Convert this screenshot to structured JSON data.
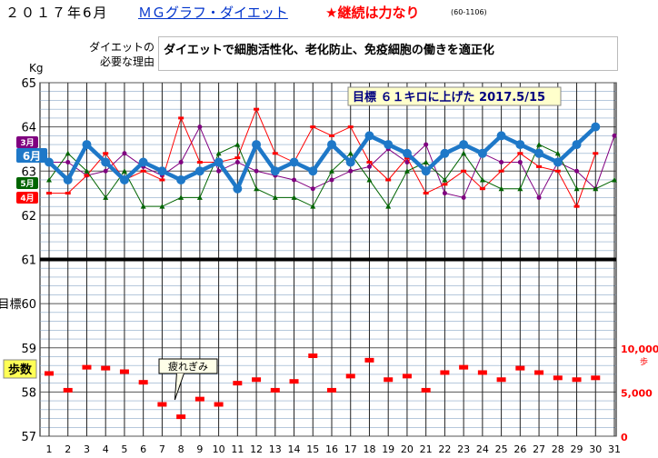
{
  "header": {
    "date": "２０１７年6月",
    "title": "ＭＧグラフ・ダイエット",
    "motto": "★継続は力なり",
    "code": "(60-1106)"
  },
  "reason": {
    "label_line1": "ダイエットの",
    "label_line2": "必要な理由",
    "text": "ダイエットで細胞活性化、老化防止、免疫細胞の働きを適正化"
  },
  "colors": {
    "june": "#1e78c8",
    "march": "#800080",
    "may": "#006400",
    "april": "#ff0000",
    "steps": "#ff0000",
    "goal_line": "#000000"
  },
  "chart_data": {
    "type": "line",
    "title": "",
    "xlabel": "",
    "ylabel": "Kg",
    "x": [
      1,
      2,
      3,
      4,
      5,
      6,
      7,
      8,
      9,
      10,
      11,
      12,
      13,
      14,
      15,
      16,
      17,
      18,
      19,
      20,
      21,
      22,
      23,
      24,
      25,
      26,
      27,
      28,
      29,
      30,
      31
    ],
    "ylim": [
      57,
      65
    ],
    "y_ticks": [
      "57",
      "58",
      "59",
      "目標60",
      "61",
      "62",
      "63",
      "64",
      "65"
    ],
    "goal_value": 61,
    "goal_label": "目標",
    "goal_box": "目標 ６１キロに上げた 2017.5/15",
    "series": [
      {
        "name": "3月",
        "values": [
          63.2,
          63.2,
          62.9,
          63.0,
          63.4,
          63.1,
          62.9,
          63.2,
          64.0,
          63.0,
          63.2,
          63.0,
          62.9,
          62.8,
          62.6,
          62.8,
          63.0,
          63.1,
          63.5,
          63.2,
          63.6,
          62.5,
          62.4,
          63.4,
          63.2,
          63.2,
          62.4,
          63.2,
          63.0,
          62.6,
          63.8
        ]
      },
      {
        "name": "4月",
        "values": [
          62.5,
          62.5,
          62.9,
          63.4,
          62.8,
          63.0,
          62.8,
          64.2,
          63.2,
          63.2,
          63.3,
          64.4,
          63.4,
          63.2,
          64.0,
          63.8,
          64.0,
          63.2,
          62.8,
          63.3,
          62.5,
          62.7,
          63.0,
          62.6,
          63.0,
          63.4,
          63.1,
          63.0,
          62.2,
          63.4,
          null
        ]
      },
      {
        "name": "5月",
        "values": [
          62.8,
          63.4,
          63.0,
          62.4,
          63.0,
          62.2,
          62.2,
          62.4,
          62.4,
          63.4,
          63.6,
          62.6,
          62.4,
          62.4,
          62.2,
          63.0,
          63.4,
          62.8,
          62.2,
          63.0,
          63.2,
          62.8,
          63.4,
          62.8,
          62.6,
          62.6,
          63.6,
          63.4,
          62.6,
          62.6,
          62.8
        ]
      },
      {
        "name": "6月",
        "values": [
          63.2,
          62.8,
          63.6,
          63.2,
          62.8,
          63.2,
          63.0,
          62.8,
          63.0,
          63.2,
          62.6,
          63.6,
          63.0,
          63.2,
          63.0,
          63.6,
          63.2,
          63.8,
          63.6,
          63.4,
          63.0,
          63.4,
          63.6,
          63.4,
          63.8,
          63.6,
          63.4,
          63.2,
          63.6,
          64.0,
          null
        ]
      }
    ],
    "steps": {
      "name": "歩数",
      "unit": "歩",
      "ylim": [
        0,
        10000
      ],
      "ticks": [
        "0",
        "5,000",
        "10,000"
      ],
      "values": [
        7100,
        5200,
        7800,
        7700,
        7300,
        6100,
        3600,
        2200,
        4200,
        3600,
        6000,
        6400,
        5200,
        6200,
        9100,
        5200,
        6800,
        8600,
        6400,
        6800,
        5200,
        7200,
        7800,
        7200,
        6400,
        7700,
        7200,
        6600,
        6400,
        6600,
        null
      ],
      "note": "疲れぎみ",
      "note_day": 7
    },
    "grid": true
  }
}
